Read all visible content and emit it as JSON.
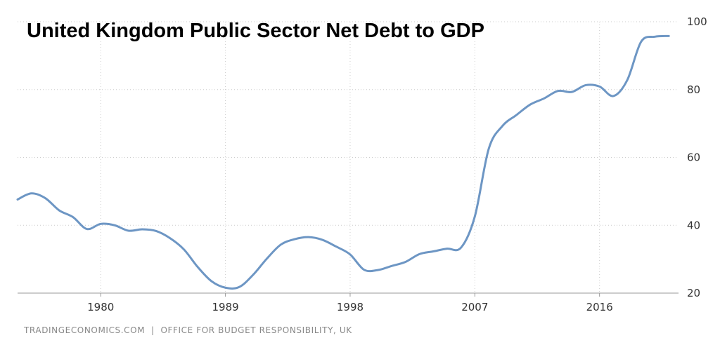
{
  "chart_data": {
    "type": "line",
    "title": "United Kingdom Public Sector Net Debt to GDP",
    "xlabel": "",
    "ylabel": "",
    "x_ticks": [
      "1980",
      "1989",
      "1998",
      "2007",
      "2016"
    ],
    "y_ticks": [
      "20",
      "40",
      "60",
      "80",
      "100"
    ],
    "xlim": [
      1974,
      2021.7
    ],
    "ylim": [
      20,
      100
    ],
    "grid": true,
    "y_axis_position": "right",
    "source": "TRADINGECONOMICS.COM  |  OFFICE FOR BUDGET RESPONSIBILITY, UK",
    "series": [
      {
        "color": "#6d96c4",
        "x": [
          1974,
          1975,
          1976,
          1977,
          1978,
          1979,
          1980,
          1981,
          1982,
          1983,
          1984,
          1985,
          1986,
          1987,
          1988,
          1989,
          1990,
          1991,
          1992,
          1993,
          1994,
          1995,
          1996,
          1997,
          1998,
          1999,
          2000,
          2001,
          2002,
          2003,
          2004,
          2005,
          2006,
          2007,
          2008,
          2009,
          2010,
          2011,
          2012,
          2013,
          2014,
          2015,
          2016,
          2017,
          2018,
          2019,
          2020,
          2021
        ],
        "values": [
          47.6,
          49.4,
          48,
          44.4,
          42.4,
          38.9,
          40.4,
          40,
          38.4,
          38.8,
          38.3,
          36.2,
          32.9,
          27.7,
          23.5,
          21.6,
          21.8,
          25.4,
          30.2,
          34.3,
          35.9,
          36.5,
          35.7,
          33.7,
          31.4,
          26.9,
          26.8,
          28,
          29.2,
          31.5,
          32.3,
          33.1,
          33.4,
          42.6,
          62.5,
          69.3,
          72.5,
          75.6,
          77.4,
          79.6,
          79.3,
          81.3,
          80.9,
          78.1,
          82.8,
          94.1,
          95.6,
          95.8
        ]
      }
    ]
  }
}
